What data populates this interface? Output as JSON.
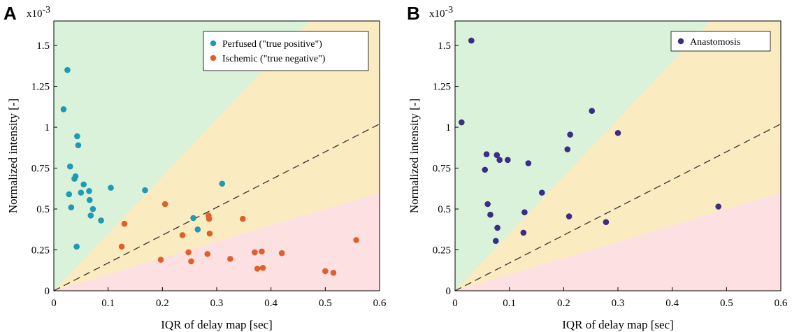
{
  "chart_data": [
    {
      "type": "scatter",
      "panel_label": "A",
      "title": "",
      "xlabel": "IQR of delay map [sec]",
      "ylabel": "Normalized intensity [-]",
      "y_exponent_label": "x10",
      "y_exponent_power": "-3",
      "xlim": [
        0,
        0.6
      ],
      "ylim": [
        0,
        1.65
      ],
      "x_ticks": [
        "0",
        "0.1",
        "0.2",
        "0.3",
        "0.4",
        "0.5",
        "0.6"
      ],
      "y_ticks": [
        "0",
        "0.25",
        "0.5",
        "0.75",
        "1",
        "1.25",
        "1.5"
      ],
      "grid": false,
      "legend_position": "top-right",
      "background_regions": [
        {
          "name": "green",
          "color": "#d9f2d9",
          "bounds": "y > 3.5x"
        },
        {
          "name": "yellow",
          "color": "#fbebc0",
          "bounds": "1x < y < 3.5x"
        },
        {
          "name": "red",
          "color": "#fde0e2",
          "bounds": "y < 1x"
        }
      ],
      "reference_line": {
        "slope": 1.7,
        "style": "dashed",
        "color": "#333333"
      },
      "series": [
        {
          "name": "Perfused (\"true positive\")",
          "color": "#1f99b4",
          "points": [
            [
              0.018,
              1.11
            ],
            [
              0.025,
              1.35
            ],
            [
              0.028,
              0.59
            ],
            [
              0.03,
              0.76
            ],
            [
              0.032,
              0.51
            ],
            [
              0.038,
              0.685
            ],
            [
              0.04,
              0.7
            ],
            [
              0.042,
              0.27
            ],
            [
              0.043,
              0.945
            ],
            [
              0.045,
              0.89
            ],
            [
              0.05,
              0.6
            ],
            [
              0.055,
              0.65
            ],
            [
              0.065,
              0.61
            ],
            [
              0.066,
              0.555
            ],
            [
              0.068,
              0.46
            ],
            [
              0.072,
              0.5
            ],
            [
              0.087,
              0.43
            ],
            [
              0.105,
              0.63
            ],
            [
              0.168,
              0.615
            ],
            [
              0.257,
              0.445
            ],
            [
              0.265,
              0.375
            ],
            [
              0.31,
              0.655
            ]
          ]
        },
        {
          "name": "Ischemic (\"true negative\")",
          "color": "#e0602b",
          "points": [
            [
              0.125,
              0.27
            ],
            [
              0.13,
              0.41
            ],
            [
              0.197,
              0.19
            ],
            [
              0.205,
              0.53
            ],
            [
              0.237,
              0.34
            ],
            [
              0.248,
              0.235
            ],
            [
              0.253,
              0.18
            ],
            [
              0.283,
              0.225
            ],
            [
              0.285,
              0.46
            ],
            [
              0.286,
              0.44
            ],
            [
              0.287,
              0.35
            ],
            [
              0.325,
              0.195
            ],
            [
              0.348,
              0.44
            ],
            [
              0.37,
              0.235
            ],
            [
              0.375,
              0.135
            ],
            [
              0.383,
              0.24
            ],
            [
              0.385,
              0.14
            ],
            [
              0.42,
              0.23
            ],
            [
              0.5,
              0.12
            ],
            [
              0.515,
              0.11
            ],
            [
              0.557,
              0.31
            ]
          ]
        }
      ]
    },
    {
      "type": "scatter",
      "panel_label": "B",
      "title": "",
      "xlabel": "IQR of delay map [sec]",
      "ylabel": "Normalized intensity [-]",
      "y_exponent_label": "x10",
      "y_exponent_power": "-3",
      "xlim": [
        0,
        0.6
      ],
      "ylim": [
        0,
        1.65
      ],
      "x_ticks": [
        "0",
        "0.1",
        "0.2",
        "0.3",
        "0.4",
        "0.5",
        "0.6"
      ],
      "y_ticks": [
        "0",
        "0.25",
        "0.5",
        "0.75",
        "1",
        "1.25",
        "1.5"
      ],
      "grid": false,
      "legend_position": "top-right",
      "background_regions": [
        {
          "name": "green",
          "color": "#d9f2d9",
          "bounds": "y > 3.5x"
        },
        {
          "name": "yellow",
          "color": "#fbebc0",
          "bounds": "1x < y < 3.5x"
        },
        {
          "name": "red",
          "color": "#fde0e2",
          "bounds": "y < 1x"
        }
      ],
      "reference_line": {
        "slope": 1.7,
        "style": "dashed",
        "color": "#333333"
      },
      "series": [
        {
          "name": "Anastomosis",
          "color": "#3b2d83",
          "points": [
            [
              0.012,
              1.03
            ],
            [
              0.03,
              1.53
            ],
            [
              0.055,
              0.74
            ],
            [
              0.058,
              0.835
            ],
            [
              0.06,
              0.53
            ],
            [
              0.065,
              0.465
            ],
            [
              0.075,
              0.305
            ],
            [
              0.077,
              0.83
            ],
            [
              0.078,
              0.385
            ],
            [
              0.082,
              0.8
            ],
            [
              0.097,
              0.8
            ],
            [
              0.126,
              0.355
            ],
            [
              0.128,
              0.48
            ],
            [
              0.135,
              0.78
            ],
            [
              0.16,
              0.6
            ],
            [
              0.207,
              0.865
            ],
            [
              0.21,
              0.455
            ],
            [
              0.212,
              0.955
            ],
            [
              0.252,
              1.1
            ],
            [
              0.278,
              0.42
            ],
            [
              0.3,
              0.965
            ],
            [
              0.485,
              0.515
            ]
          ]
        }
      ]
    }
  ]
}
